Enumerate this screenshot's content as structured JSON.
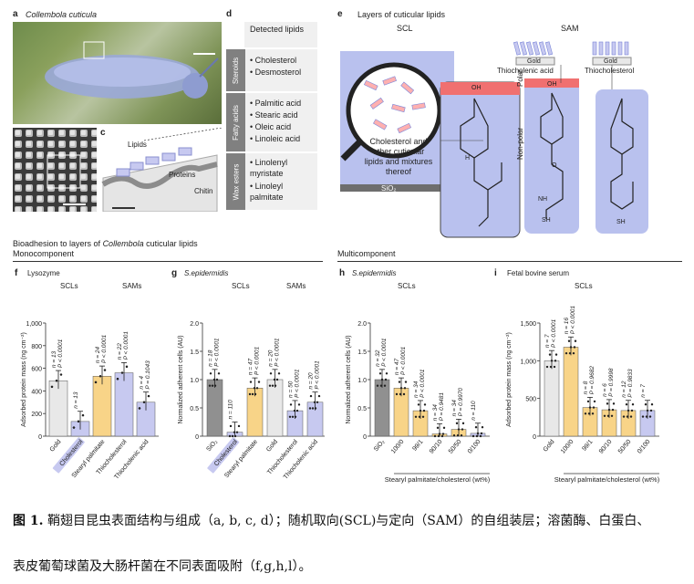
{
  "panels": {
    "a": {
      "letter": "a",
      "title": "Collembola cuticula"
    },
    "b": {
      "letter": "b"
    },
    "c": {
      "letter": "c",
      "labels": [
        "Lipids",
        "Proteins",
        "Chitin"
      ]
    },
    "d": {
      "letter": "d",
      "header": "Detected lipids",
      "groups": [
        {
          "name": "Steroids",
          "items": [
            "• Cholesterol",
            "• Desmosterol"
          ]
        },
        {
          "name": "Fatty acids",
          "items": [
            "• Palmitic acid",
            "• Stearic acid",
            "• Oleic acid",
            "• Linoleic acid"
          ]
        },
        {
          "name": "Wax esters",
          "items": [
            "• Linolenyl myristate",
            "• Linoleyl palmitate"
          ]
        }
      ]
    },
    "e": {
      "letter": "e",
      "title": "Layers of cuticular lipids",
      "scl": "SCL",
      "sam": "SAM",
      "blob_text": "Cholesterol and other cuticular lipids and mixtures thereof",
      "sio2": "SiO₂",
      "polar": "Polar",
      "nonpolar": "Non-polar",
      "gold1": "Gold",
      "gold2": "Gold",
      "thio_acid": "Thiocholenic acid",
      "thio_chol": "Thiocholesterol",
      "atoms": {
        "oh": "OH",
        "h": "H",
        "sh": "SH",
        "o": "O",
        "nh": "NH"
      }
    }
  },
  "section": {
    "title_pre": "Bioadhesion to layers of ",
    "title_ital": "Collembola",
    "title_post": " cuticular lipids",
    "mono": "Monocomponent",
    "multi": "Multicomponent"
  },
  "chart_data": [
    {
      "id": "f",
      "type": "bar",
      "title": "Lysozyme",
      "group_labels": [
        "SCLs",
        "SAMs"
      ],
      "ylabel": "Adsorbed protein mass (ng cm⁻²)",
      "ylim": [
        0,
        1000
      ],
      "yticks": [
        "0",
        "200",
        "400",
        "600",
        "800",
        "1,000"
      ],
      "categories": [
        "Gold",
        "Cholesterol",
        "Stearyl palmitate",
        "Thiocholesterol",
        "Thiocholenic acid"
      ],
      "values": [
        490,
        130,
        530,
        560,
        300
      ],
      "colors": [
        "#e8e8e8",
        "#c7c9f0",
        "#f8d488",
        "#c7c9f0",
        "#c7c9f0"
      ],
      "annotations": [
        "n = 13\nP < 0.0001",
        "n = 13",
        "n = 24\nP < 0.0001",
        "n = 22\nP < 0.0001",
        "n = 4\nP = 0.1043"
      ]
    },
    {
      "id": "g",
      "type": "bar",
      "title": "S.epidermidis",
      "group_labels": [
        "SCLs",
        "SAMs"
      ],
      "ylabel": "Normalized adherent cells (AU)",
      "ylim": [
        0,
        2.0
      ],
      "yticks": [
        "0",
        "0.5",
        "1.0",
        "1.5",
        "2.0"
      ],
      "categories": [
        "SiO₂",
        "Cholesterol",
        "Stearyl palmitate",
        "Gold",
        "Thiocholesterol",
        "Thiocholenic acid"
      ],
      "values": [
        1.0,
        0.07,
        0.85,
        1.0,
        0.45,
        0.6
      ],
      "colors": [
        "#909090",
        "#c7c9f0",
        "#f8d488",
        "#e8e8e8",
        "#c7c9f0",
        "#c7c9f0"
      ],
      "annotations": [
        "n = 18\nP < 0.0001",
        "n = 110",
        "n = 47\nP < 0.0001",
        "n = 20\nP < 0.0001",
        "n = 50\nP < 0.0001",
        "n = 20\nP < 0.0001"
      ]
    },
    {
      "id": "h",
      "type": "bar",
      "title": "S.epidermidis",
      "group_labels": [
        "SCLs"
      ],
      "ylabel": "Normalized adherent cells (AU)",
      "ylim": [
        0,
        2.0
      ],
      "yticks": [
        "0",
        "0.5",
        "1.0",
        "1.5",
        "2.0"
      ],
      "categories": [
        "SiO₂",
        "100/0",
        "99/1",
        "90/10",
        "50/50",
        "0/100"
      ],
      "values": [
        1.0,
        0.85,
        0.45,
        0.04,
        0.12,
        0.05
      ],
      "colors": [
        "#909090",
        "#f8d488",
        "#f8d488",
        "#f8d488",
        "#f8d488",
        "#c7c9f0"
      ],
      "annotations": [
        "n = 32\nP < 0.0001",
        "n = 47\nP < 0.0001",
        "n = 34\nP < 0.0001",
        "n = 34\nP = 0.9481",
        "n = 34\nP = 0.9970",
        "n = 110"
      ],
      "xlabel": "Stearyl palmitate/cholesterol (wt%)"
    },
    {
      "id": "i",
      "type": "bar",
      "title": "Fetal bovine serum",
      "group_labels": [
        "SCLs"
      ],
      "ylabel": "Adsorbed protein mass (ng cm⁻²)",
      "ylim": [
        0,
        1500
      ],
      "yticks": [
        "0",
        "500",
        "1,000",
        "1,500"
      ],
      "categories": [
        "Gold",
        "100/0",
        "99/1",
        "90/10",
        "50/50",
        "0/100"
      ],
      "values": [
        1000,
        1180,
        380,
        350,
        340,
        340
      ],
      "colors": [
        "#e8e8e8",
        "#f8d488",
        "#f8d488",
        "#f8d488",
        "#f8d488",
        "#c7c9f0"
      ],
      "annotations": [
        "n = 7\nP < 0.0001",
        "n = 16\nP < 0.0001",
        "n = 8\nP = 0.9682",
        "n = 6\nP = 0.9998",
        "n = 12\nP = 0.9833",
        "n = 7"
      ],
      "xlabel": "Stearyl palmitate/cholesterol (wt%)"
    }
  ],
  "caption": {
    "fig": "图 1.",
    "line1": "鞘翅目昆虫表面结构与组成（a, b, c, d）；随机取向(SCL)与定向（SAM）的自组装层；溶菌酶、白蛋白、",
    "line2": "表皮葡萄球菌及大肠杆菌在不同表面吸附（f,g,h,l）。"
  },
  "colors": {
    "lavender": "#c7c9f0",
    "gold": "#f8d488",
    "gray": "#909090",
    "panel_blue": "#b9c1ee",
    "red": "#f07070"
  }
}
